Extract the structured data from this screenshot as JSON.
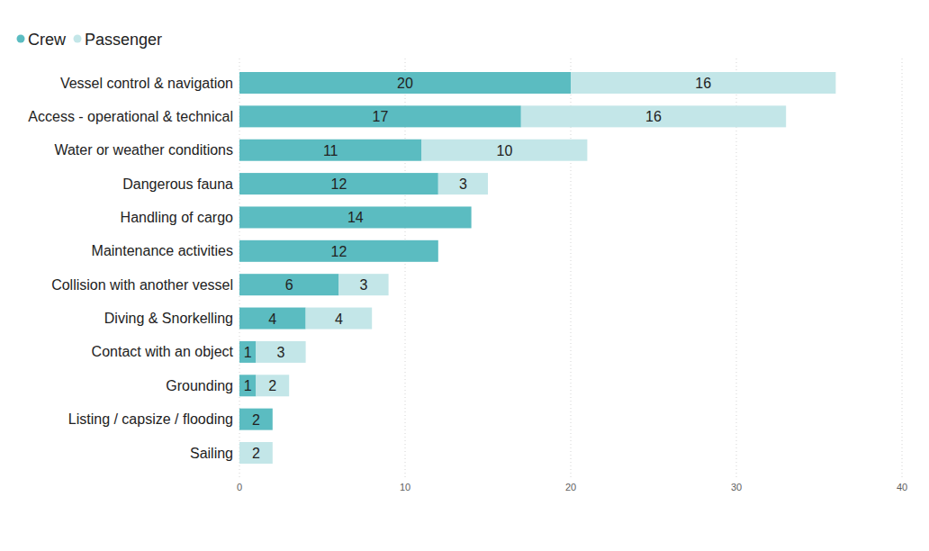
{
  "chart_data": {
    "type": "bar",
    "orientation": "horizontal",
    "stacked": true,
    "data_labels": true,
    "grid": true,
    "legend": "top-left",
    "categories": [
      "Vessel control & navigation",
      "Access - operational & technical",
      "Water or weather conditions",
      "Dangerous fauna",
      "Handling of cargo",
      "Maintenance activities",
      "Collision with another vessel",
      "Diving & Snorkelling",
      "Contact with an object",
      "Grounding",
      "Listing / capsize / flooding",
      "Sailing"
    ],
    "series": [
      {
        "name": "Crew",
        "color": "#5bbcc1",
        "values": [
          20,
          17,
          11,
          12,
          14,
          12,
          6,
          4,
          1,
          1,
          2,
          null
        ]
      },
      {
        "name": "Passenger",
        "color": "#c3e6e8",
        "values": [
          16,
          16,
          10,
          3,
          null,
          null,
          3,
          4,
          3,
          2,
          null,
          2
        ]
      }
    ],
    "xlim": [
      0,
      40
    ],
    "xticks": [
      0,
      10,
      20,
      30,
      40
    ]
  }
}
